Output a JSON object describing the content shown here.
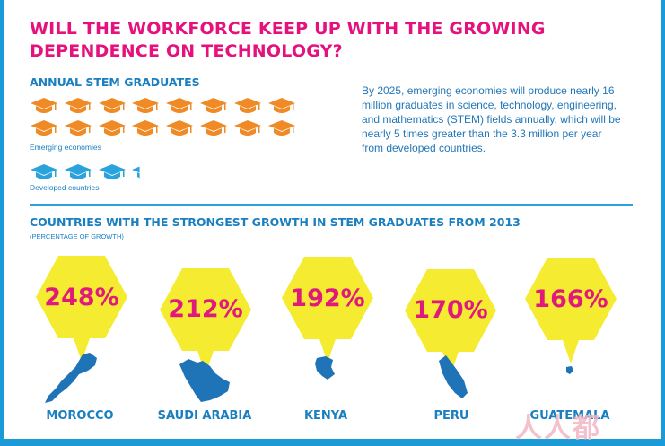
{
  "title": "WILL THE WORKFORCE KEEP UP WITH THE GROWING DEPENDENCE ON TECHNOLOGY?",
  "annual": {
    "heading": "ANNUAL STEM GRADUATES",
    "emerging_label": "Emerging economies",
    "developed_label": "Developed countries",
    "emerging_icon_count": 16,
    "developed_icon_count": 3.3,
    "emerging_color": "#f08a24",
    "developed_color": "#2aa3dd",
    "icon": "graduation-cap-icon"
  },
  "description": "By 2025, emerging economies will produce nearly 16 million graduates in science, technology, engineering, and mathematics (STEM) fields annually, which will be nearly 5 times greater than the 3.3 million per year from developed countries.",
  "growth": {
    "heading": "COUNTRIES WITH THE STRONGEST GROWTH IN STEM GRADUATES FROM 2013",
    "subheading": "(PERCENTAGE OF GROWTH)",
    "hex_color": "#f5ec31",
    "map_color": "#1f73b7",
    "countries": [
      {
        "name": "MOROCCO",
        "value": "248%"
      },
      {
        "name": "SAUDI ARABIA",
        "value": "212%"
      },
      {
        "name": "KENYA",
        "value": "192%"
      },
      {
        "name": "PERU",
        "value": "170%"
      },
      {
        "name": "GUATEMALA",
        "value": "166%"
      }
    ]
  },
  "watermark": "人人都是产品经理"
}
